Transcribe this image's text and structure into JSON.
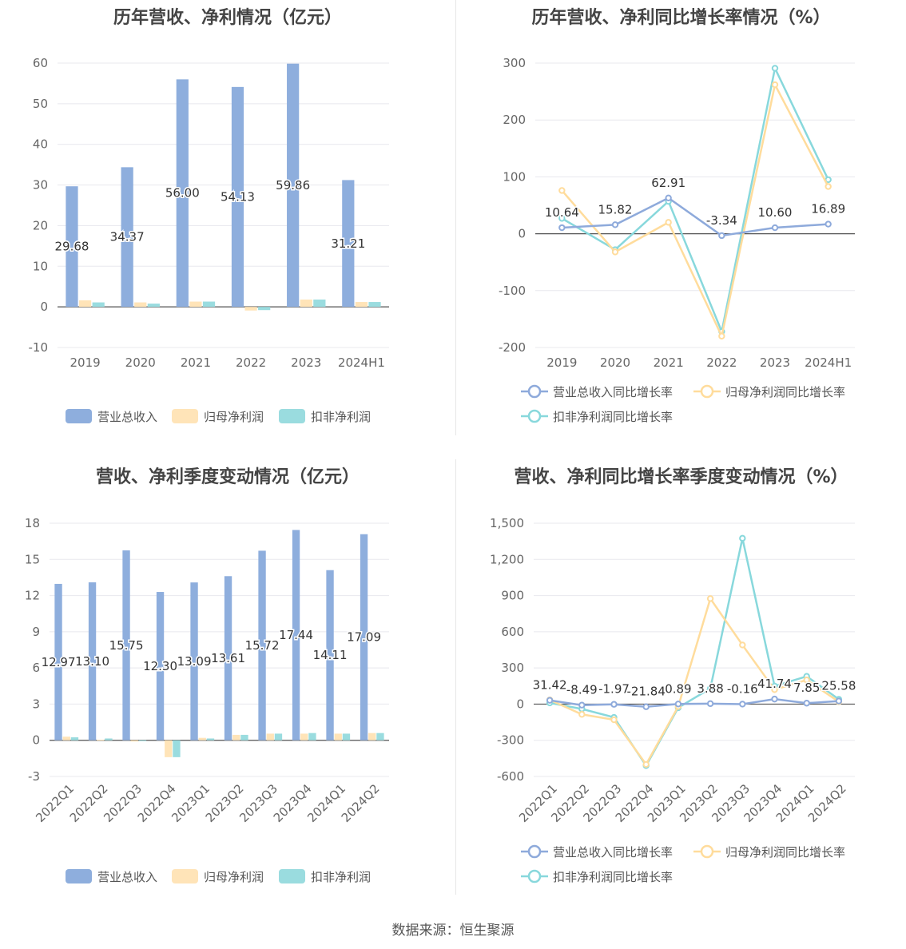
{
  "source_label": "数据来源：恒生聚源",
  "colors": {
    "revenue": "#8eaedd",
    "net": "#ffe4b8",
    "deducted": "#9adcdf",
    "revenue_line": "#8eaadb",
    "net_line": "#ffdc9c",
    "deducted_line": "#88d8dc",
    "grid": "#e8e8ee",
    "axis": "#666666"
  },
  "chart_data": [
    {
      "id": "annual_values",
      "type": "bar",
      "title": "历年营收、净利情况（亿元）",
      "categories": [
        "2019",
        "2020",
        "2021",
        "2022",
        "2023",
        "2024H1"
      ],
      "series": [
        {
          "name": "营业总收入",
          "values": [
            29.68,
            34.37,
            56.0,
            54.13,
            59.86,
            31.21
          ],
          "labels": [
            "29.68",
            "34.37",
            "56.00",
            "54.13",
            "59.86",
            "31.21"
          ]
        },
        {
          "name": "归母净利润",
          "values": [
            1.6,
            1.1,
            1.3,
            -0.9,
            1.8,
            1.2
          ]
        },
        {
          "name": "扣非净利润",
          "values": [
            1.1,
            0.8,
            1.3,
            -0.8,
            1.8,
            1.2
          ]
        }
      ],
      "ylim": [
        -10,
        60
      ],
      "yticks": [
        -10,
        0,
        10,
        20,
        30,
        40,
        50,
        60
      ],
      "ytick_labels": [
        "-10",
        "0",
        "10",
        "20",
        "30",
        "40",
        "50",
        "60"
      ],
      "legend_position": "bottom"
    },
    {
      "id": "annual_growth",
      "type": "line",
      "title": "历年营收、净利同比增长率情况（%）",
      "categories": [
        "2019",
        "2020",
        "2021",
        "2022",
        "2023",
        "2024H1"
      ],
      "series": [
        {
          "name": "营业总收入同比增长率",
          "values": [
            10.64,
            15.82,
            62.91,
            -3.34,
            10.6,
            16.89
          ],
          "labels": [
            "10.64",
            "15.82",
            "62.91",
            "-3.34",
            "10.60",
            "16.89"
          ]
        },
        {
          "name": "归母净利润同比增长率",
          "values": [
            76,
            -32,
            20,
            -180,
            262,
            83
          ]
        },
        {
          "name": "扣非净利润同比增长率",
          "values": [
            27,
            -28,
            57,
            -172,
            291,
            95
          ]
        }
      ],
      "ylim": [
        -200,
        300
      ],
      "yticks": [
        -200,
        -100,
        0,
        100,
        200,
        300
      ],
      "ytick_labels": [
        "-200",
        "-100",
        "0",
        "100",
        "200",
        "300"
      ],
      "legend_position": "bottom"
    },
    {
      "id": "quarterly_values",
      "type": "bar",
      "title": "营收、净利季度变动情况（亿元）",
      "categories": [
        "2022Q1",
        "2022Q2",
        "2022Q3",
        "2022Q4",
        "2023Q1",
        "2023Q2",
        "2023Q3",
        "2023Q4",
        "2024Q1",
        "2024Q2"
      ],
      "series": [
        {
          "name": "营业总收入",
          "values": [
            12.97,
            13.1,
            15.75,
            12.3,
            13.09,
            13.61,
            15.72,
            17.44,
            14.11,
            17.09
          ],
          "labels": [
            "12.97",
            "13.10",
            "15.75",
            "12.30",
            "13.09",
            "13.61",
            "15.72",
            "17.44",
            "14.11",
            "17.09"
          ]
        },
        {
          "name": "归母净利润",
          "values": [
            0.3,
            0.05,
            -0.1,
            -1.4,
            0.2,
            0.45,
            0.55,
            0.55,
            0.55,
            0.6
          ]
        },
        {
          "name": "扣非净利润",
          "values": [
            0.25,
            0.15,
            -0.05,
            -1.4,
            0.15,
            0.45,
            0.55,
            0.6,
            0.55,
            0.6
          ]
        }
      ],
      "ylim": [
        -3,
        18
      ],
      "yticks": [
        -3,
        0,
        3,
        6,
        9,
        12,
        15,
        18
      ],
      "ytick_labels": [
        "-3",
        "0",
        "3",
        "6",
        "9",
        "12",
        "15",
        "18"
      ],
      "legend_position": "bottom"
    },
    {
      "id": "quarterly_growth",
      "type": "line",
      "title": "营收、净利同比增长率季度变动情况（%）",
      "categories": [
        "2022Q1",
        "2022Q2",
        "2022Q3",
        "2022Q4",
        "2023Q1",
        "2023Q2",
        "2023Q3",
        "2023Q4",
        "2024Q1",
        "2024Q2"
      ],
      "series": [
        {
          "name": "营业总收入同比增长率",
          "values": [
            31.42,
            -8.49,
            -1.97,
            -21.84,
            0.89,
            3.88,
            -0.16,
            41.74,
            7.85,
            25.58
          ],
          "labels": [
            "31.42",
            "-8.49",
            "-1.97",
            "-21.84",
            "0.89",
            "3.88",
            "-0.16",
            "41.74",
            "7.85",
            "25.58"
          ]
        },
        {
          "name": "归母净利润同比增长率",
          "values": [
            35,
            -85,
            -130,
            -500,
            -20,
            875,
            490,
            120,
            200,
            20
          ]
        },
        {
          "name": "扣非净利润同比增长率",
          "values": [
            10,
            -40,
            -110,
            -510,
            -30,
            130,
            1375,
            150,
            230,
            40
          ]
        }
      ],
      "ylim": [
        -600,
        1500
      ],
      "yticks": [
        -600,
        -300,
        0,
        300,
        600,
        900,
        1200,
        1500
      ],
      "ytick_labels": [
        "-600",
        "-300",
        "0",
        "300",
        "600",
        "900",
        "1,200",
        "1,500"
      ],
      "legend_position": "bottom"
    }
  ]
}
